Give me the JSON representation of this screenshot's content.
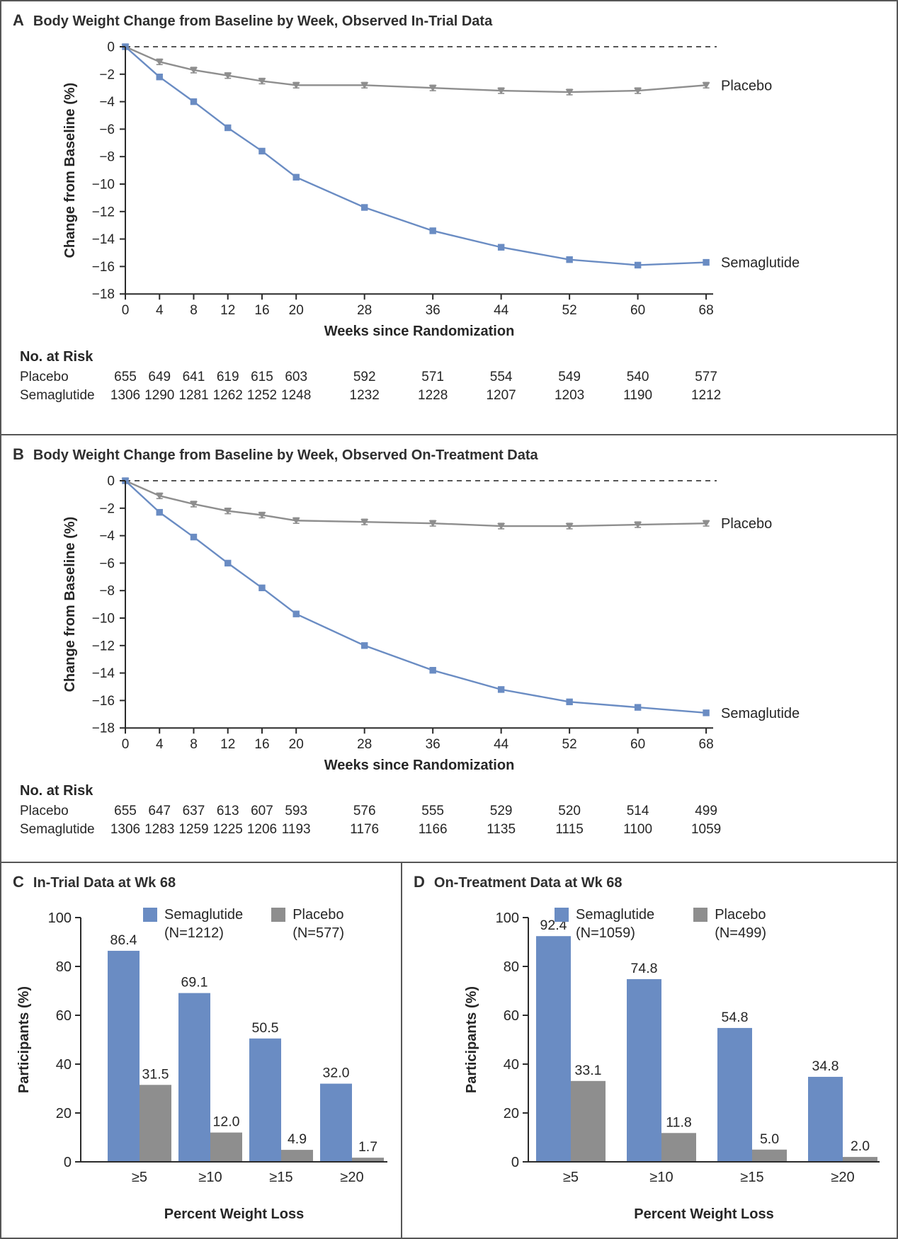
{
  "figure": {
    "accent_blue": "#6a8cc3",
    "accent_gray": "#8e8e8e",
    "axis_color": "#2b2b2b"
  },
  "chart_data": [
    {
      "panel": "A",
      "letter": "A",
      "type": "line",
      "title": "Body Weight Change from Baseline by Week, Observed In-Trial Data",
      "xlabel": "Weeks since Randomization",
      "ylabel": "Change from Baseline (%)",
      "ylim": [
        -18,
        0
      ],
      "yticks": [
        0,
        -2,
        -4,
        -6,
        -8,
        -10,
        -12,
        -14,
        -16,
        -18
      ],
      "ytick_labels": [
        "0",
        "−2",
        "−4",
        "−6",
        "−8",
        "−10",
        "−12",
        "−14",
        "−16",
        "−18"
      ],
      "x": [
        0,
        4,
        8,
        12,
        16,
        20,
        28,
        36,
        44,
        52,
        60,
        68
      ],
      "zero_line": "dashed",
      "legend_position": "right-of-line-ends",
      "series": [
        {
          "name": "Placebo",
          "color": "#8e8e8e",
          "marker": "triangle-down",
          "se": 0.2,
          "values": [
            0,
            -1.1,
            -1.7,
            -2.1,
            -2.5,
            -2.8,
            -2.8,
            -3.0,
            -3.2,
            -3.3,
            -3.2,
            -2.8
          ]
        },
        {
          "name": "Semaglutide",
          "color": "#6a8cc3",
          "marker": "square",
          "se": 0.18,
          "values": [
            0,
            -2.2,
            -4.0,
            -5.9,
            -7.6,
            -9.5,
            -11.7,
            -13.4,
            -14.6,
            -15.5,
            -15.9,
            -15.7
          ]
        }
      ],
      "risk": {
        "title": "No. at Risk",
        "rows": [
          {
            "label": "Placebo",
            "values": [
              655,
              649,
              641,
              619,
              615,
              603,
              592,
              571,
              554,
              549,
              540,
              577
            ]
          },
          {
            "label": "Semaglutide",
            "values": [
              1306,
              1290,
              1281,
              1262,
              1252,
              1248,
              1232,
              1228,
              1207,
              1203,
              1190,
              1212
            ]
          }
        ]
      }
    },
    {
      "panel": "B",
      "letter": "B",
      "type": "line",
      "title": "Body Weight Change from Baseline by Week, Observed On-Treatment Data",
      "xlabel": "Weeks since Randomization",
      "ylabel": "Change from Baseline (%)",
      "ylim": [
        -18,
        0
      ],
      "yticks": [
        0,
        -2,
        -4,
        -6,
        -8,
        -10,
        -12,
        -14,
        -16,
        -18
      ],
      "ytick_labels": [
        "0",
        "−2",
        "−4",
        "−6",
        "−8",
        "−10",
        "−12",
        "−14",
        "−16",
        "−18"
      ],
      "x": [
        0,
        4,
        8,
        12,
        16,
        20,
        28,
        36,
        44,
        52,
        60,
        68
      ],
      "zero_line": "dashed",
      "legend_position": "right-of-line-ends",
      "series": [
        {
          "name": "Placebo",
          "color": "#8e8e8e",
          "marker": "triangle-down",
          "se": 0.2,
          "values": [
            0,
            -1.1,
            -1.7,
            -2.2,
            -2.5,
            -2.9,
            -3.0,
            -3.1,
            -3.3,
            -3.3,
            -3.2,
            -3.1
          ]
        },
        {
          "name": "Semaglutide",
          "color": "#6a8cc3",
          "marker": "square",
          "se": 0.18,
          "values": [
            0,
            -2.3,
            -4.1,
            -6.0,
            -7.8,
            -9.7,
            -12.0,
            -13.8,
            -15.2,
            -16.1,
            -16.5,
            -16.9
          ]
        }
      ],
      "risk": {
        "title": "No. at Risk",
        "rows": [
          {
            "label": "Placebo",
            "values": [
              655,
              647,
              637,
              613,
              607,
              593,
              576,
              555,
              529,
              520,
              514,
              499
            ]
          },
          {
            "label": "Semaglutide",
            "values": [
              1306,
              1283,
              1259,
              1225,
              1206,
              1193,
              1176,
              1166,
              1135,
              1115,
              1100,
              1059
            ]
          }
        ]
      }
    },
    {
      "panel": "C",
      "letter": "C",
      "type": "bar",
      "title": "In-Trial Data at Wk 68",
      "xlabel": "Percent Weight Loss",
      "ylabel": "Participants (%)",
      "ylim": [
        0,
        100
      ],
      "yticks": [
        0,
        20,
        40,
        60,
        80,
        100
      ],
      "ytick_labels": [
        "0",
        "20",
        "40",
        "60",
        "80",
        "100"
      ],
      "categories": [
        "≥5",
        "≥10",
        "≥15",
        "≥20"
      ],
      "legend_position": "top",
      "series": [
        {
          "name": "Semaglutide",
          "n_label": "(N=1212)",
          "color": "#6a8cc3",
          "values": [
            86.4,
            69.1,
            50.5,
            32.0
          ],
          "labels": [
            "86.4",
            "69.1",
            "50.5",
            "32.0"
          ]
        },
        {
          "name": "Placebo",
          "n_label": "(N=577)",
          "color": "#8e8e8e",
          "values": [
            31.5,
            12.0,
            4.9,
            1.7
          ],
          "labels": [
            "31.5",
            "12.0",
            "4.9",
            "1.7"
          ]
        }
      ]
    },
    {
      "panel": "D",
      "letter": "D",
      "type": "bar",
      "title": "On-Treatment Data at Wk 68",
      "xlabel": "Percent Weight Loss",
      "ylabel": "Participants (%)",
      "ylim": [
        0,
        100
      ],
      "yticks": [
        0,
        20,
        40,
        60,
        80,
        100
      ],
      "ytick_labels": [
        "0",
        "20",
        "40",
        "60",
        "80",
        "100"
      ],
      "categories": [
        "≥5",
        "≥10",
        "≥15",
        "≥20"
      ],
      "legend_position": "top",
      "series": [
        {
          "name": "Semaglutide",
          "n_label": "(N=1059)",
          "color": "#6a8cc3",
          "values": [
            92.4,
            74.8,
            54.8,
            34.8
          ],
          "labels": [
            "92.4",
            "74.8",
            "54.8",
            "34.8"
          ]
        },
        {
          "name": "Placebo",
          "n_label": "(N=499)",
          "color": "#8e8e8e",
          "values": [
            33.1,
            11.8,
            5.0,
            2.0
          ],
          "labels": [
            "33.1",
            "11.8",
            "5.0",
            "2.0"
          ]
        }
      ]
    }
  ]
}
